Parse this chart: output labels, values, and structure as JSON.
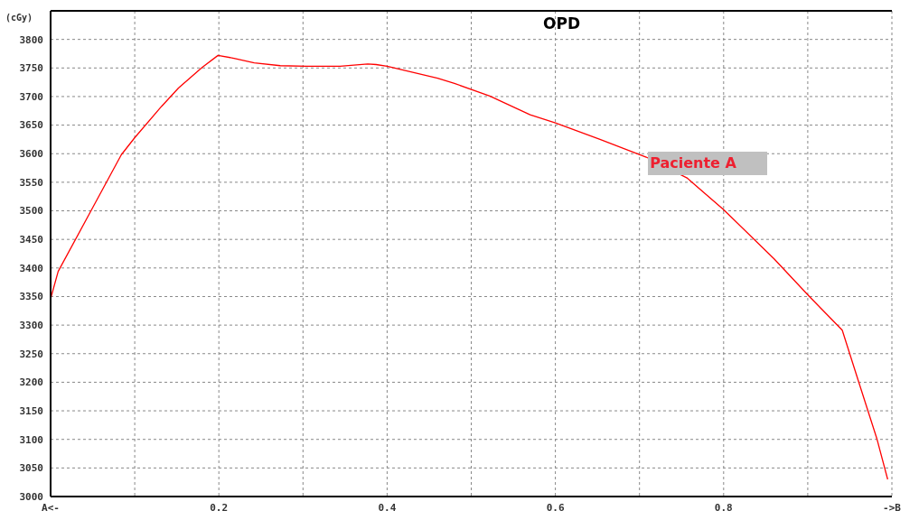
{
  "chart_data": {
    "type": "line",
    "title": "OPD",
    "ylabel": "(cGy)",
    "x": [
      0,
      0.009,
      0.048,
      0.084,
      0.1,
      0.132,
      0.152,
      0.18,
      0.199,
      0.218,
      0.242,
      0.273,
      0.304,
      0.344,
      0.377,
      0.387,
      0.4,
      0.46,
      0.48,
      0.522,
      0.57,
      0.6,
      0.653,
      0.708,
      0.757,
      0.8,
      0.86,
      0.902,
      0.941,
      0.96,
      0.982,
      0.995
    ],
    "series": [
      {
        "name": "Paciente A",
        "color": "#ff0000",
        "values": [
          3346,
          3394,
          3500,
          3598,
          3628,
          3683,
          3715,
          3751,
          3772,
          3767,
          3759,
          3754,
          3753,
          3753,
          3757,
          3756,
          3753,
          3732,
          3723,
          3701,
          3668,
          3654,
          3625,
          3594,
          3557,
          3502,
          3416,
          3350,
          3291,
          3203,
          3102,
          3030
        ]
      }
    ],
    "xlim": [
      0,
      1
    ],
    "xticks": [
      {
        "value": 0,
        "label": "A<-"
      },
      {
        "value": 0.1,
        "label": null
      },
      0.2,
      {
        "value": 0.3,
        "label": null
      },
      0.4,
      {
        "value": 0.5,
        "label": null
      },
      0.6,
      {
        "value": 0.7,
        "label": null
      },
      0.8,
      {
        "value": 0.9,
        "label": null
      },
      {
        "value": 1,
        "label": "->B"
      }
    ],
    "ylim": [
      3000,
      3850
    ],
    "yticks": [
      3000,
      3050,
      3100,
      3150,
      3200,
      3250,
      3300,
      3350,
      3400,
      3450,
      3500,
      3550,
      3600,
      3650,
      3700,
      3750,
      3800
    ],
    "grid": true,
    "marker": "none",
    "line_style": "solid",
    "legend": false
  }
}
